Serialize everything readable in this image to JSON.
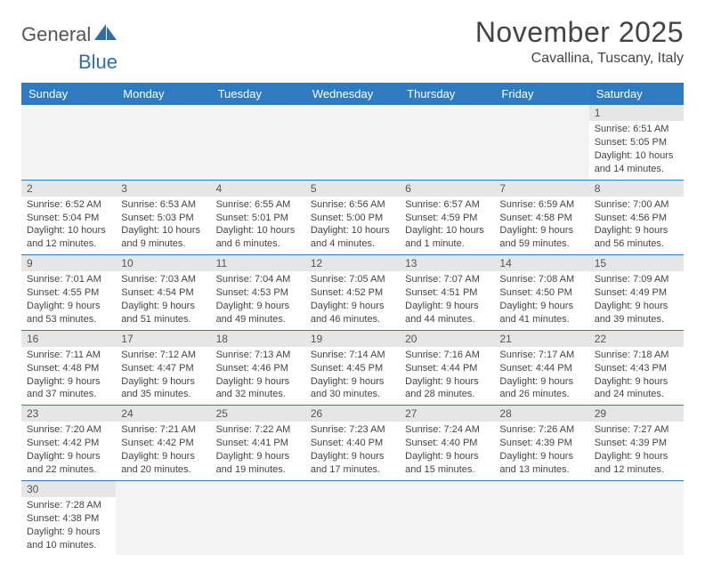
{
  "brand": {
    "part1": "General",
    "part2": "Blue"
  },
  "title": "November 2025",
  "location": "Cavallina, Tuscany, Italy",
  "colors": {
    "header_bg": "#2f7bbf",
    "header_fg": "#ffffff",
    "daynum_bg": "#e6e6e6",
    "row_border": "#2f7bbf",
    "brand_blue": "#2f6fa8",
    "text": "#444444",
    "empty_bg": "#f3f3f3"
  },
  "weekdays": [
    "Sunday",
    "Monday",
    "Tuesday",
    "Wednesday",
    "Thursday",
    "Friday",
    "Saturday"
  ],
  "weeks": [
    [
      null,
      null,
      null,
      null,
      null,
      null,
      {
        "n": "1",
        "sr": "Sunrise: 6:51 AM",
        "ss": "Sunset: 5:05 PM",
        "dl": "Daylight: 10 hours and 14 minutes."
      }
    ],
    [
      {
        "n": "2",
        "sr": "Sunrise: 6:52 AM",
        "ss": "Sunset: 5:04 PM",
        "dl": "Daylight: 10 hours and 12 minutes."
      },
      {
        "n": "3",
        "sr": "Sunrise: 6:53 AM",
        "ss": "Sunset: 5:03 PM",
        "dl": "Daylight: 10 hours and 9 minutes."
      },
      {
        "n": "4",
        "sr": "Sunrise: 6:55 AM",
        "ss": "Sunset: 5:01 PM",
        "dl": "Daylight: 10 hours and 6 minutes."
      },
      {
        "n": "5",
        "sr": "Sunrise: 6:56 AM",
        "ss": "Sunset: 5:00 PM",
        "dl": "Daylight: 10 hours and 4 minutes."
      },
      {
        "n": "6",
        "sr": "Sunrise: 6:57 AM",
        "ss": "Sunset: 4:59 PM",
        "dl": "Daylight: 10 hours and 1 minute."
      },
      {
        "n": "7",
        "sr": "Sunrise: 6:59 AM",
        "ss": "Sunset: 4:58 PM",
        "dl": "Daylight: 9 hours and 59 minutes."
      },
      {
        "n": "8",
        "sr": "Sunrise: 7:00 AM",
        "ss": "Sunset: 4:56 PM",
        "dl": "Daylight: 9 hours and 56 minutes."
      }
    ],
    [
      {
        "n": "9",
        "sr": "Sunrise: 7:01 AM",
        "ss": "Sunset: 4:55 PM",
        "dl": "Daylight: 9 hours and 53 minutes."
      },
      {
        "n": "10",
        "sr": "Sunrise: 7:03 AM",
        "ss": "Sunset: 4:54 PM",
        "dl": "Daylight: 9 hours and 51 minutes."
      },
      {
        "n": "11",
        "sr": "Sunrise: 7:04 AM",
        "ss": "Sunset: 4:53 PM",
        "dl": "Daylight: 9 hours and 49 minutes."
      },
      {
        "n": "12",
        "sr": "Sunrise: 7:05 AM",
        "ss": "Sunset: 4:52 PM",
        "dl": "Daylight: 9 hours and 46 minutes."
      },
      {
        "n": "13",
        "sr": "Sunrise: 7:07 AM",
        "ss": "Sunset: 4:51 PM",
        "dl": "Daylight: 9 hours and 44 minutes."
      },
      {
        "n": "14",
        "sr": "Sunrise: 7:08 AM",
        "ss": "Sunset: 4:50 PM",
        "dl": "Daylight: 9 hours and 41 minutes."
      },
      {
        "n": "15",
        "sr": "Sunrise: 7:09 AM",
        "ss": "Sunset: 4:49 PM",
        "dl": "Daylight: 9 hours and 39 minutes."
      }
    ],
    [
      {
        "n": "16",
        "sr": "Sunrise: 7:11 AM",
        "ss": "Sunset: 4:48 PM",
        "dl": "Daylight: 9 hours and 37 minutes."
      },
      {
        "n": "17",
        "sr": "Sunrise: 7:12 AM",
        "ss": "Sunset: 4:47 PM",
        "dl": "Daylight: 9 hours and 35 minutes."
      },
      {
        "n": "18",
        "sr": "Sunrise: 7:13 AM",
        "ss": "Sunset: 4:46 PM",
        "dl": "Daylight: 9 hours and 32 minutes."
      },
      {
        "n": "19",
        "sr": "Sunrise: 7:14 AM",
        "ss": "Sunset: 4:45 PM",
        "dl": "Daylight: 9 hours and 30 minutes."
      },
      {
        "n": "20",
        "sr": "Sunrise: 7:16 AM",
        "ss": "Sunset: 4:44 PM",
        "dl": "Daylight: 9 hours and 28 minutes."
      },
      {
        "n": "21",
        "sr": "Sunrise: 7:17 AM",
        "ss": "Sunset: 4:44 PM",
        "dl": "Daylight: 9 hours and 26 minutes."
      },
      {
        "n": "22",
        "sr": "Sunrise: 7:18 AM",
        "ss": "Sunset: 4:43 PM",
        "dl": "Daylight: 9 hours and 24 minutes."
      }
    ],
    [
      {
        "n": "23",
        "sr": "Sunrise: 7:20 AM",
        "ss": "Sunset: 4:42 PM",
        "dl": "Daylight: 9 hours and 22 minutes."
      },
      {
        "n": "24",
        "sr": "Sunrise: 7:21 AM",
        "ss": "Sunset: 4:42 PM",
        "dl": "Daylight: 9 hours and 20 minutes."
      },
      {
        "n": "25",
        "sr": "Sunrise: 7:22 AM",
        "ss": "Sunset: 4:41 PM",
        "dl": "Daylight: 9 hours and 19 minutes."
      },
      {
        "n": "26",
        "sr": "Sunrise: 7:23 AM",
        "ss": "Sunset: 4:40 PM",
        "dl": "Daylight: 9 hours and 17 minutes."
      },
      {
        "n": "27",
        "sr": "Sunrise: 7:24 AM",
        "ss": "Sunset: 4:40 PM",
        "dl": "Daylight: 9 hours and 15 minutes."
      },
      {
        "n": "28",
        "sr": "Sunrise: 7:26 AM",
        "ss": "Sunset: 4:39 PM",
        "dl": "Daylight: 9 hours and 13 minutes."
      },
      {
        "n": "29",
        "sr": "Sunrise: 7:27 AM",
        "ss": "Sunset: 4:39 PM",
        "dl": "Daylight: 9 hours and 12 minutes."
      }
    ],
    [
      {
        "n": "30",
        "sr": "Sunrise: 7:28 AM",
        "ss": "Sunset: 4:38 PM",
        "dl": "Daylight: 9 hours and 10 minutes."
      },
      null,
      null,
      null,
      null,
      null,
      null
    ]
  ]
}
